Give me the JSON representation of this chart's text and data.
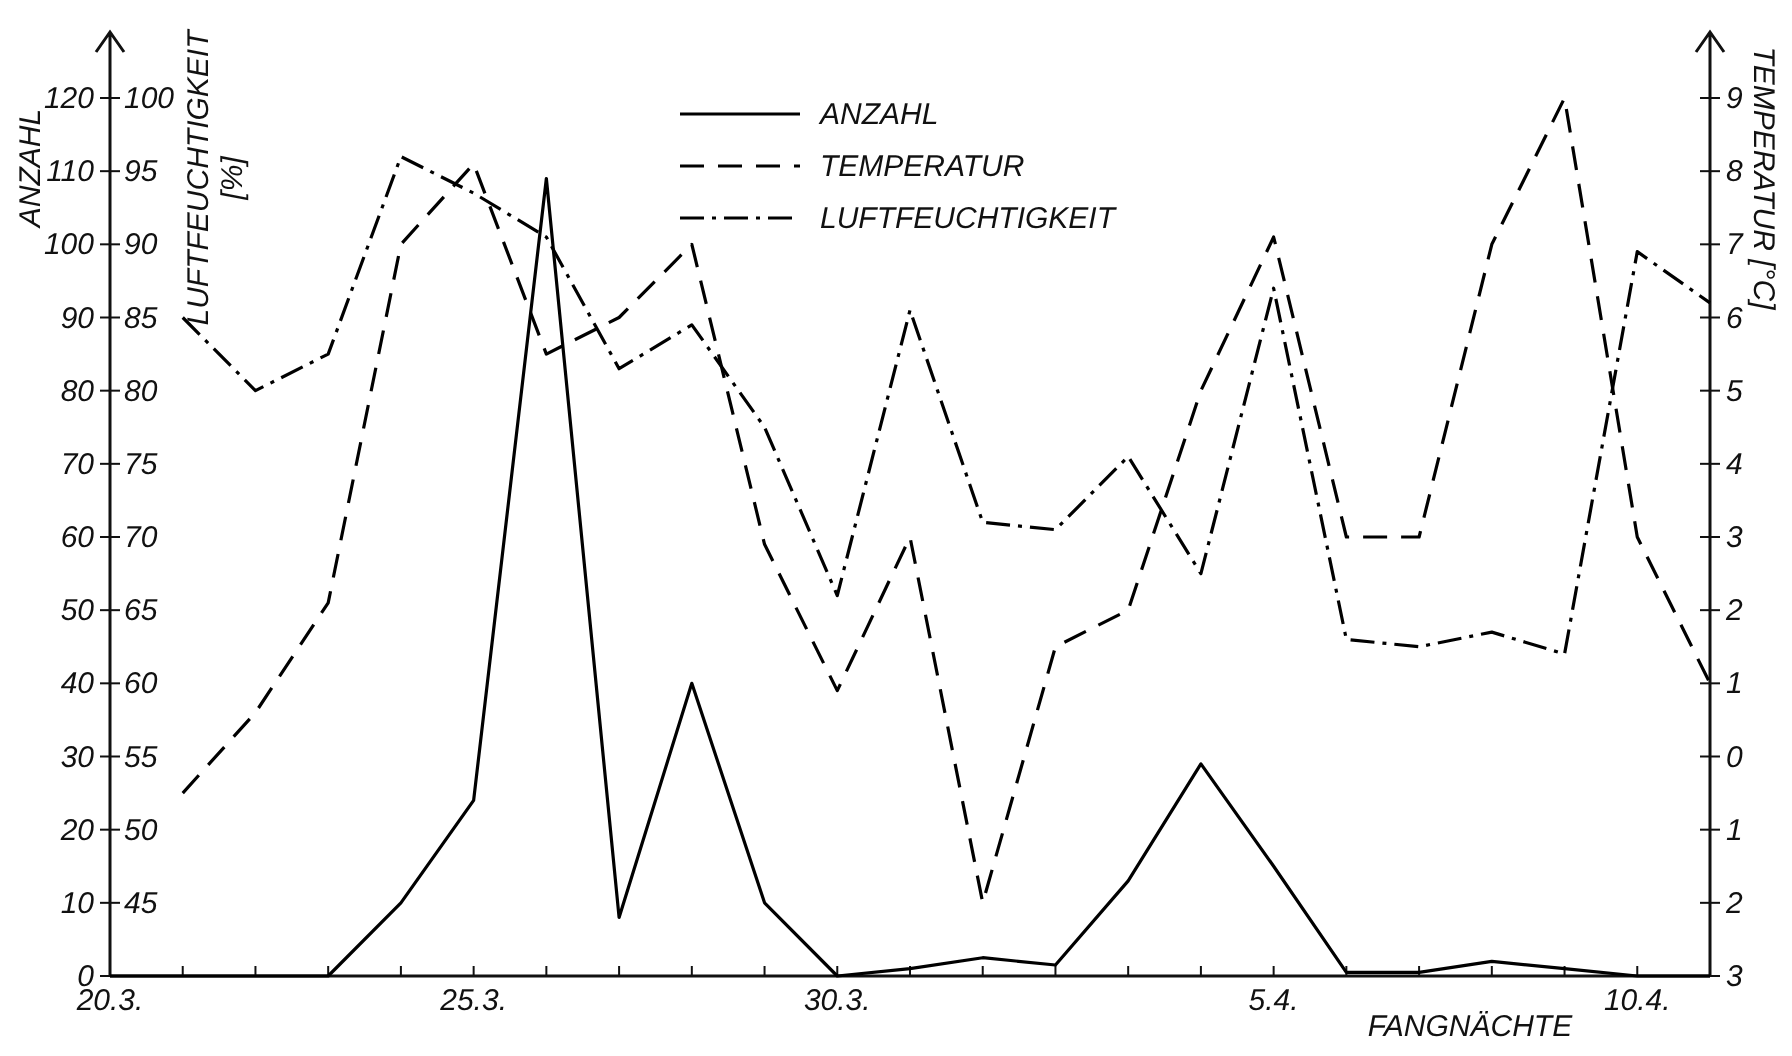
{
  "chart_data": {
    "type": "line",
    "xlabel": "FANGNÄCHTE",
    "ylabel": "ANZAHL",
    "y2label": "LUFTFEUCHTIGKEIT [%]",
    "y3label": "TEMPERATUR [°C]",
    "x": [
      "--03-20",
      "--03-21",
      "--03-22",
      "--03-23",
      "--03-24",
      "--03-25",
      "--03-26",
      "--03-27",
      "--03-28",
      "--03-29",
      "--03-30",
      "--03-31",
      "--04-01",
      "--04-02",
      "--04-03",
      "--04-04",
      "--04-05",
      "--04-06",
      "--04-07",
      "--04-08",
      "--04-09",
      "--04-10",
      "--04-11"
    ],
    "xlim": [
      "--03-20",
      "--04-11"
    ],
    "xticks": [
      {
        "value": "--03-20",
        "label": "20.3."
      },
      {
        "value": "--03-21",
        "label": null
      },
      {
        "value": "--03-22",
        "label": null
      },
      {
        "value": "--03-23",
        "label": null
      },
      {
        "value": "--03-24",
        "label": null
      },
      {
        "value": "--03-25",
        "label": "25.3."
      },
      {
        "value": "--03-26",
        "label": null
      },
      {
        "value": "--03-27",
        "label": null
      },
      {
        "value": "--03-28",
        "label": null
      },
      {
        "value": "--03-29",
        "label": null
      },
      {
        "value": "--03-30",
        "label": "30.3."
      },
      {
        "value": "--03-31",
        "label": null
      },
      {
        "value": "--04-01",
        "label": null
      },
      {
        "value": "--04-02",
        "label": null
      },
      {
        "value": "--04-03",
        "label": null
      },
      {
        "value": "--04-04",
        "label": null
      },
      {
        "value": "--04-05",
        "label": "5.4."
      },
      {
        "value": "--04-06",
        "label": null
      },
      {
        "value": "--04-07",
        "label": null
      },
      {
        "value": "--04-08",
        "label": null
      },
      {
        "value": "--04-09",
        "label": null
      },
      {
        "value": "--04-10",
        "label": "10.4."
      },
      {
        "value": "--04-11",
        "label": null
      }
    ],
    "ylim": [
      0,
      120
    ],
    "yticks": [
      0,
      10,
      20,
      30,
      40,
      50,
      60,
      70,
      80,
      90,
      100,
      110,
      120
    ],
    "y2lim": [
      40,
      100
    ],
    "y2ticks": [
      45,
      50,
      55,
      60,
      65,
      70,
      75,
      80,
      85,
      90,
      95,
      100
    ],
    "y3lim": [
      -3,
      9
    ],
    "y3ticks": [
      {
        "value": -3,
        "label": "3"
      },
      {
        "value": -2,
        "label": "2"
      },
      {
        "value": -1,
        "label": "1"
      },
      0,
      1,
      2,
      3,
      4,
      5,
      6,
      7,
      8,
      9
    ],
    "grid": false,
    "legend": "top",
    "marker": "none",
    "series": [
      {
        "name": "ANZAHL",
        "color": "#000000",
        "line_style": "solid",
        "values": [
          0,
          0,
          0,
          0,
          10,
          24,
          109,
          8,
          40,
          10,
          0,
          1,
          2.5,
          1.5,
          13,
          29,
          15,
          0.5,
          0.5,
          2,
          1,
          0,
          0
        ]
      },
      {
        "name": "TEMPERATUR",
        "color": "#000000",
        "line_style": "dashed",
        "axis": "y3",
        "values": [
          null,
          -0.5,
          0.6,
          2.1,
          7,
          8.1,
          5.5,
          6,
          7,
          2.9,
          0.9,
          3,
          -2,
          1.5,
          2,
          5,
          7.1,
          3,
          3,
          7,
          9,
          3,
          1
        ]
      },
      {
        "name": "LUFTFEUCHTIGKEIT",
        "color": "#000000",
        "line_style": "dashdot",
        "axis": "y2",
        "values": [
          null,
          85,
          80,
          82.5,
          96,
          93.5,
          90.5,
          81.5,
          84.5,
          77.5,
          66,
          85.5,
          71,
          70.5,
          75.5,
          67.5,
          87,
          63,
          62.5,
          63.5,
          62,
          89.5,
          86
        ]
      }
    ]
  }
}
